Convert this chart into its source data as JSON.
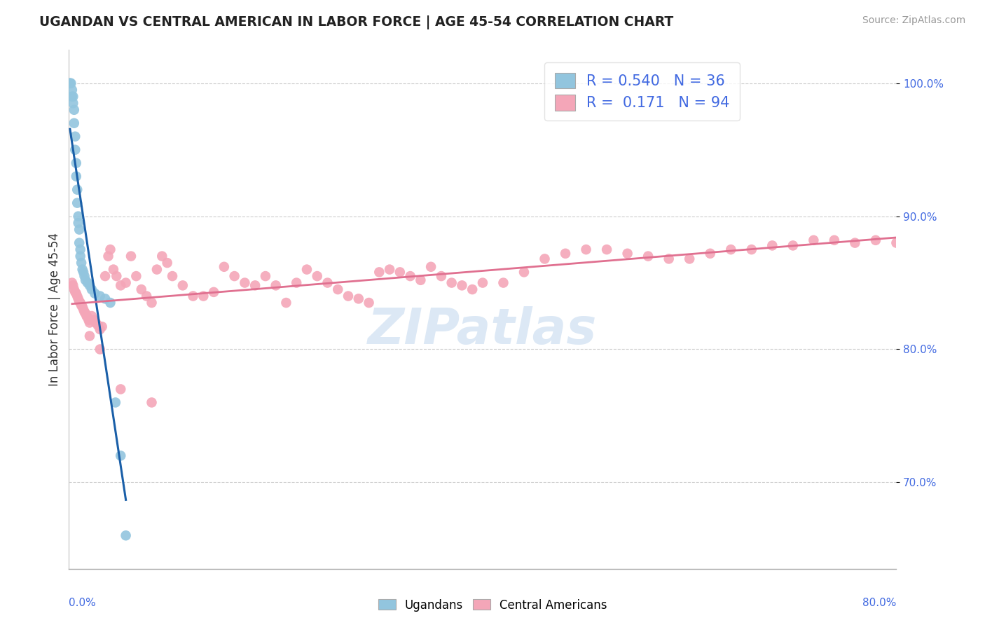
{
  "title": "UGANDAN VS CENTRAL AMERICAN IN LABOR FORCE | AGE 45-54 CORRELATION CHART",
  "source": "Source: ZipAtlas.com",
  "ylabel": "In Labor Force | Age 45-54",
  "ytick_values": [
    0.7,
    0.8,
    0.9,
    1.0
  ],
  "xlim": [
    0.0,
    0.8
  ],
  "ylim": [
    0.635,
    1.025
  ],
  "legend_R_ugandan": "0.540",
  "legend_N_ugandan": "36",
  "legend_R_central": "0.171",
  "legend_N_central": "94",
  "ugandan_color": "#92c5de",
  "central_color": "#f4a6b8",
  "ugandan_line_color": "#1a5fa8",
  "central_line_color": "#e07090",
  "watermark_text": "ZIPatlas",
  "ugandan_scatter_x": [
    0.001,
    0.001,
    0.002,
    0.003,
    0.003,
    0.004,
    0.004,
    0.005,
    0.005,
    0.006,
    0.006,
    0.007,
    0.007,
    0.008,
    0.008,
    0.009,
    0.009,
    0.01,
    0.01,
    0.011,
    0.011,
    0.012,
    0.013,
    0.014,
    0.015,
    0.016,
    0.018,
    0.02,
    0.022,
    0.025,
    0.03,
    0.035,
    0.04,
    0.045,
    0.05,
    0.055
  ],
  "ugandan_scatter_y": [
    1.0,
    1.0,
    1.0,
    0.995,
    0.99,
    0.99,
    0.985,
    0.98,
    0.97,
    0.96,
    0.95,
    0.94,
    0.93,
    0.92,
    0.91,
    0.9,
    0.895,
    0.89,
    0.88,
    0.875,
    0.87,
    0.865,
    0.86,
    0.858,
    0.855,
    0.852,
    0.85,
    0.848,
    0.845,
    0.842,
    0.84,
    0.838,
    0.835,
    0.76,
    0.72,
    0.66
  ],
  "central_scatter_x": [
    0.003,
    0.004,
    0.005,
    0.006,
    0.007,
    0.008,
    0.009,
    0.01,
    0.011,
    0.012,
    0.013,
    0.014,
    0.015,
    0.016,
    0.017,
    0.018,
    0.019,
    0.02,
    0.022,
    0.024,
    0.026,
    0.028,
    0.03,
    0.032,
    0.035,
    0.038,
    0.04,
    0.043,
    0.046,
    0.05,
    0.055,
    0.06,
    0.065,
    0.07,
    0.075,
    0.08,
    0.085,
    0.09,
    0.095,
    0.1,
    0.11,
    0.12,
    0.13,
    0.14,
    0.15,
    0.16,
    0.17,
    0.18,
    0.19,
    0.2,
    0.21,
    0.22,
    0.23,
    0.24,
    0.25,
    0.26,
    0.27,
    0.28,
    0.29,
    0.3,
    0.31,
    0.32,
    0.33,
    0.34,
    0.35,
    0.36,
    0.37,
    0.38,
    0.39,
    0.4,
    0.42,
    0.44,
    0.46,
    0.48,
    0.5,
    0.52,
    0.54,
    0.56,
    0.58,
    0.6,
    0.62,
    0.64,
    0.66,
    0.68,
    0.7,
    0.72,
    0.74,
    0.76,
    0.78,
    0.8,
    0.02,
    0.03,
    0.05,
    0.08
  ],
  "central_scatter_y": [
    0.85,
    0.848,
    0.845,
    0.843,
    0.842,
    0.84,
    0.838,
    0.836,
    0.835,
    0.833,
    0.832,
    0.83,
    0.828,
    0.827,
    0.825,
    0.824,
    0.822,
    0.82,
    0.825,
    0.822,
    0.82,
    0.818,
    0.815,
    0.817,
    0.855,
    0.87,
    0.875,
    0.86,
    0.855,
    0.848,
    0.85,
    0.87,
    0.855,
    0.845,
    0.84,
    0.835,
    0.86,
    0.87,
    0.865,
    0.855,
    0.848,
    0.84,
    0.84,
    0.843,
    0.862,
    0.855,
    0.85,
    0.848,
    0.855,
    0.848,
    0.835,
    0.85,
    0.86,
    0.855,
    0.85,
    0.845,
    0.84,
    0.838,
    0.835,
    0.858,
    0.86,
    0.858,
    0.855,
    0.852,
    0.862,
    0.855,
    0.85,
    0.848,
    0.845,
    0.85,
    0.85,
    0.858,
    0.868,
    0.872,
    0.875,
    0.875,
    0.872,
    0.87,
    0.868,
    0.868,
    0.872,
    0.875,
    0.875,
    0.878,
    0.878,
    0.882,
    0.882,
    0.88,
    0.882,
    0.88,
    0.81,
    0.8,
    0.77,
    0.76
  ]
}
